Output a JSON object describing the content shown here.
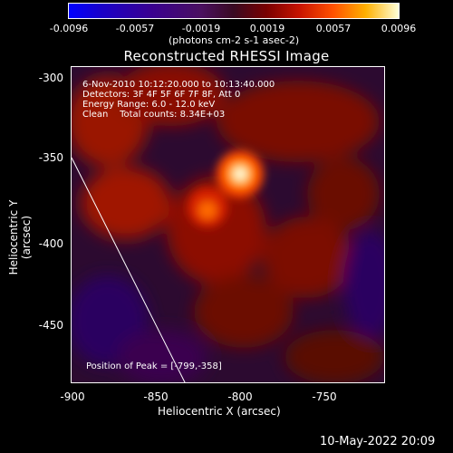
{
  "colorbar": {
    "ticks": [
      "-0.0096",
      "-0.0057",
      "-0.0019",
      "0.0019",
      "0.0057",
      "0.0096"
    ],
    "units": "(photons cm-2 s-1 asec-2)"
  },
  "title": "Reconstructed RHESSI Image",
  "info": {
    "time": "6-Nov-2010 10:12:20.000 to 10:13:40.000",
    "detectors": "Detectors: 3F 4F 5F 6F 7F 8F, Att 0",
    "energy": "Energy Range: 6.0 - 12.0 keV",
    "clean": "Clean    Total counts: 8.34E+03",
    "peak": "Position of Peak = [-799,-358]"
  },
  "axes": {
    "xlabel": "Heliocentric X (arcsec)",
    "ylabel": "Heliocentric Y (arcsec)",
    "xticks": [
      "-900",
      "-850",
      "-800",
      "-750"
    ],
    "yticks": [
      "-300",
      "-350",
      "-400",
      "-450"
    ]
  },
  "timestamp": "10-May-2022 20:09"
}
